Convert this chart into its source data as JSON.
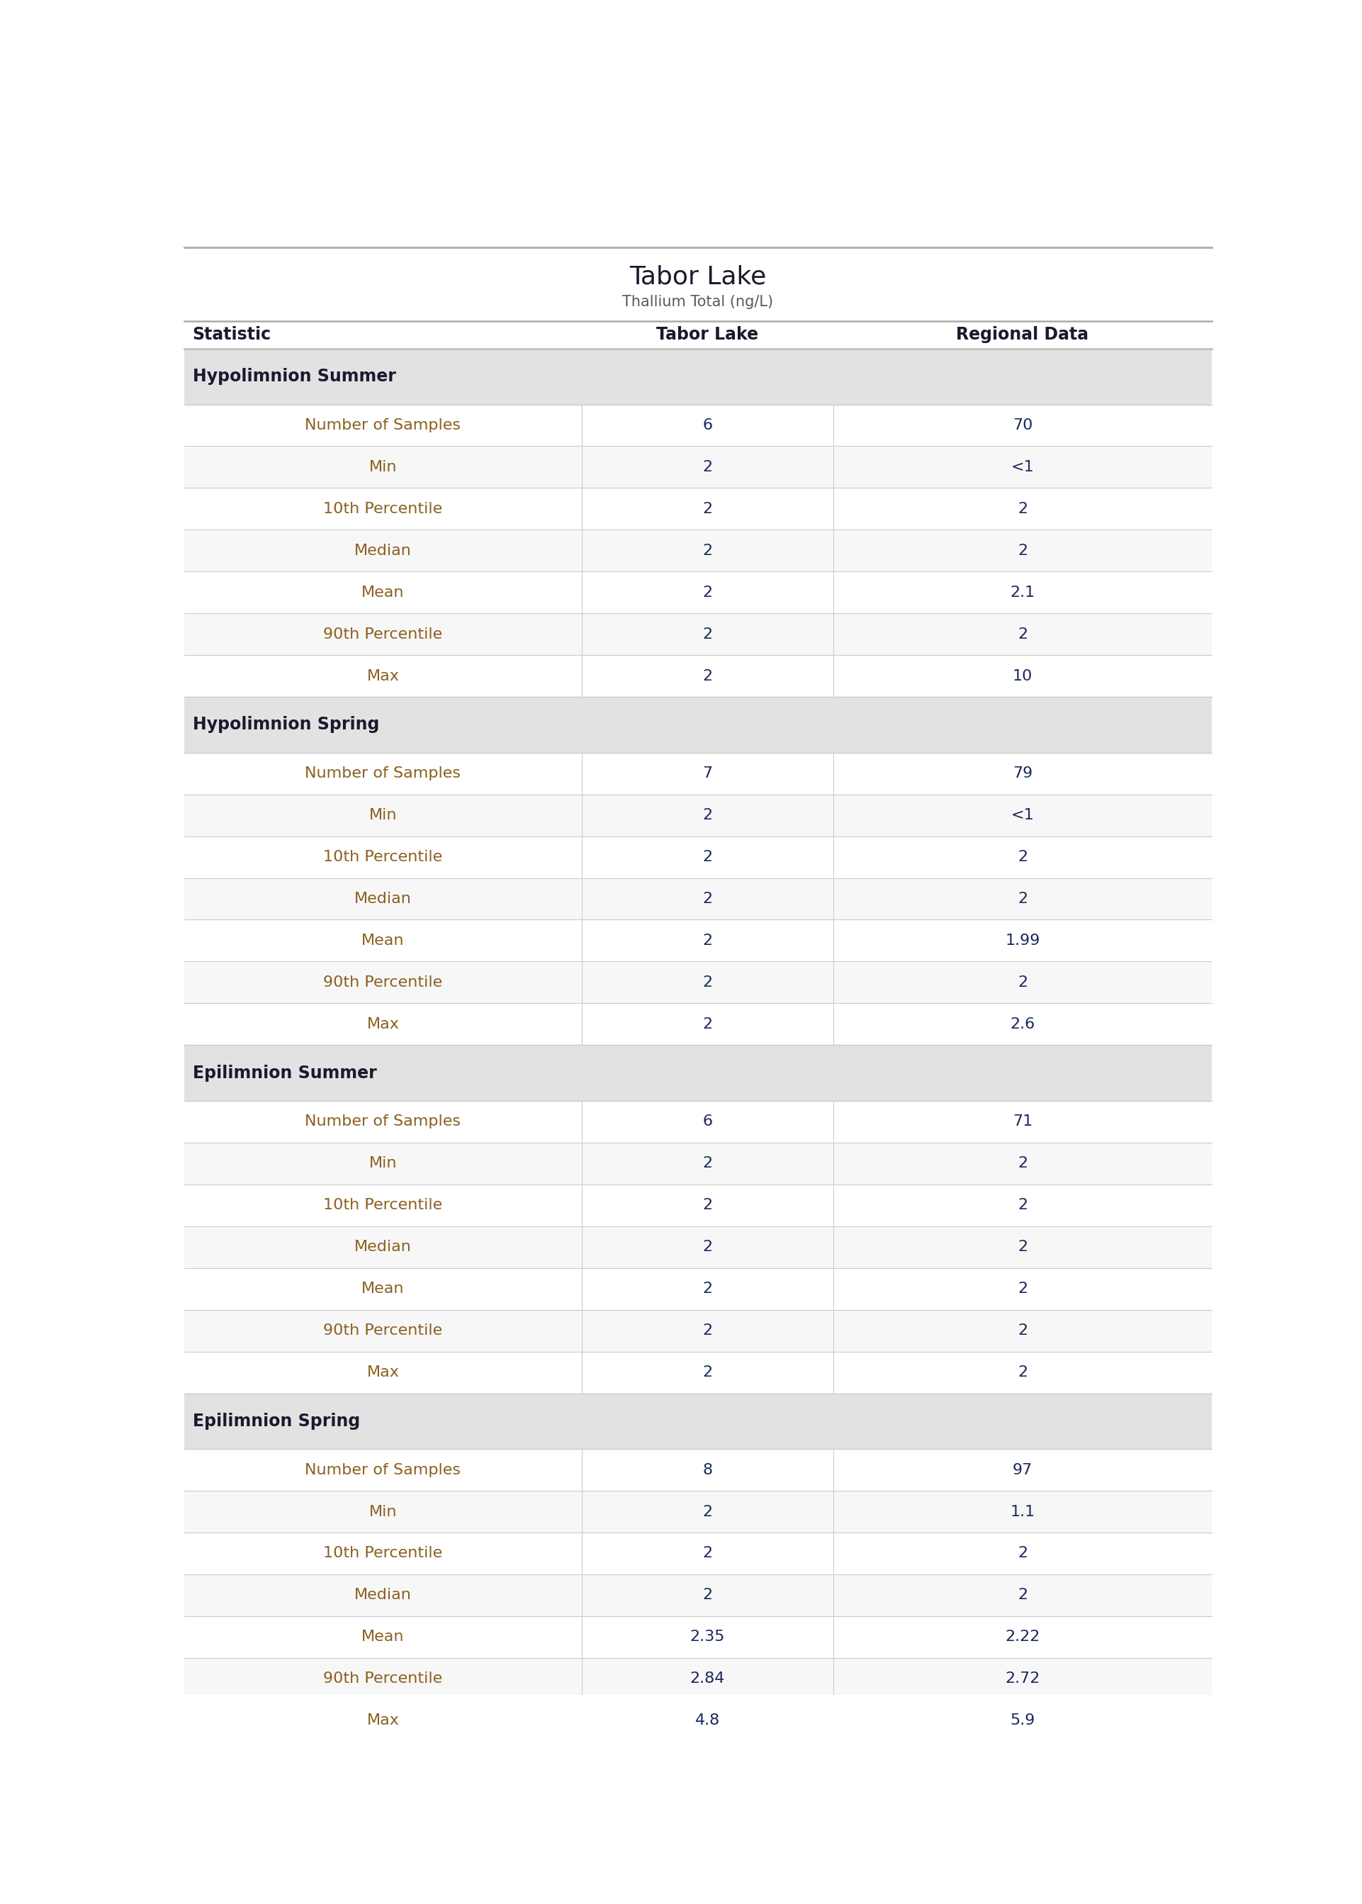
{
  "title": "Tabor Lake",
  "subtitle": "Thallium Total (ng/L)",
  "columns": [
    "Statistic",
    "Tabor Lake",
    "Regional Data"
  ],
  "sections": [
    {
      "header": "Hypolimnion Summer",
      "rows": [
        [
          "Number of Samples",
          "6",
          "70"
        ],
        [
          "Min",
          "2",
          "<1"
        ],
        [
          "10th Percentile",
          "2",
          "2"
        ],
        [
          "Median",
          "2",
          "2"
        ],
        [
          "Mean",
          "2",
          "2.1"
        ],
        [
          "90th Percentile",
          "2",
          "2"
        ],
        [
          "Max",
          "2",
          "10"
        ]
      ]
    },
    {
      "header": "Hypolimnion Spring",
      "rows": [
        [
          "Number of Samples",
          "7",
          "79"
        ],
        [
          "Min",
          "2",
          "<1"
        ],
        [
          "10th Percentile",
          "2",
          "2"
        ],
        [
          "Median",
          "2",
          "2"
        ],
        [
          "Mean",
          "2",
          "1.99"
        ],
        [
          "90th Percentile",
          "2",
          "2"
        ],
        [
          "Max",
          "2",
          "2.6"
        ]
      ]
    },
    {
      "header": "Epilimnion Summer",
      "rows": [
        [
          "Number of Samples",
          "6",
          "71"
        ],
        [
          "Min",
          "2",
          "2"
        ],
        [
          "10th Percentile",
          "2",
          "2"
        ],
        [
          "Median",
          "2",
          "2"
        ],
        [
          "Mean",
          "2",
          "2"
        ],
        [
          "90th Percentile",
          "2",
          "2"
        ],
        [
          "Max",
          "2",
          "2"
        ]
      ]
    },
    {
      "header": "Epilimnion Spring",
      "rows": [
        [
          "Number of Samples",
          "8",
          "97"
        ],
        [
          "Min",
          "2",
          "1.1"
        ],
        [
          "10th Percentile",
          "2",
          "2"
        ],
        [
          "Median",
          "2",
          "2"
        ],
        [
          "Mean",
          "2.35",
          "2.22"
        ],
        [
          "90th Percentile",
          "2.84",
          "2.72"
        ],
        [
          "Max",
          "4.8",
          "5.9"
        ]
      ]
    }
  ],
  "title_fontsize": 26,
  "subtitle_fontsize": 15,
  "header_fontsize": 17,
  "col_header_fontsize": 17,
  "data_fontsize": 16,
  "title_color": "#1a1a2e",
  "subtitle_color": "#5a5a5a",
  "header_bg_color": "#e2e2e2",
  "header_text_color": "#1a1a2e",
  "col_header_color": "#1a1a2e",
  "row_bg_even": "#f7f7f7",
  "row_bg_odd": "#ffffff",
  "stat_name_color": "#8B6020",
  "data_value_color": "#1a2a5a",
  "grid_line_color": "#cccccc",
  "border_color": "#aaaaaa",
  "bg_color": "#ffffff"
}
